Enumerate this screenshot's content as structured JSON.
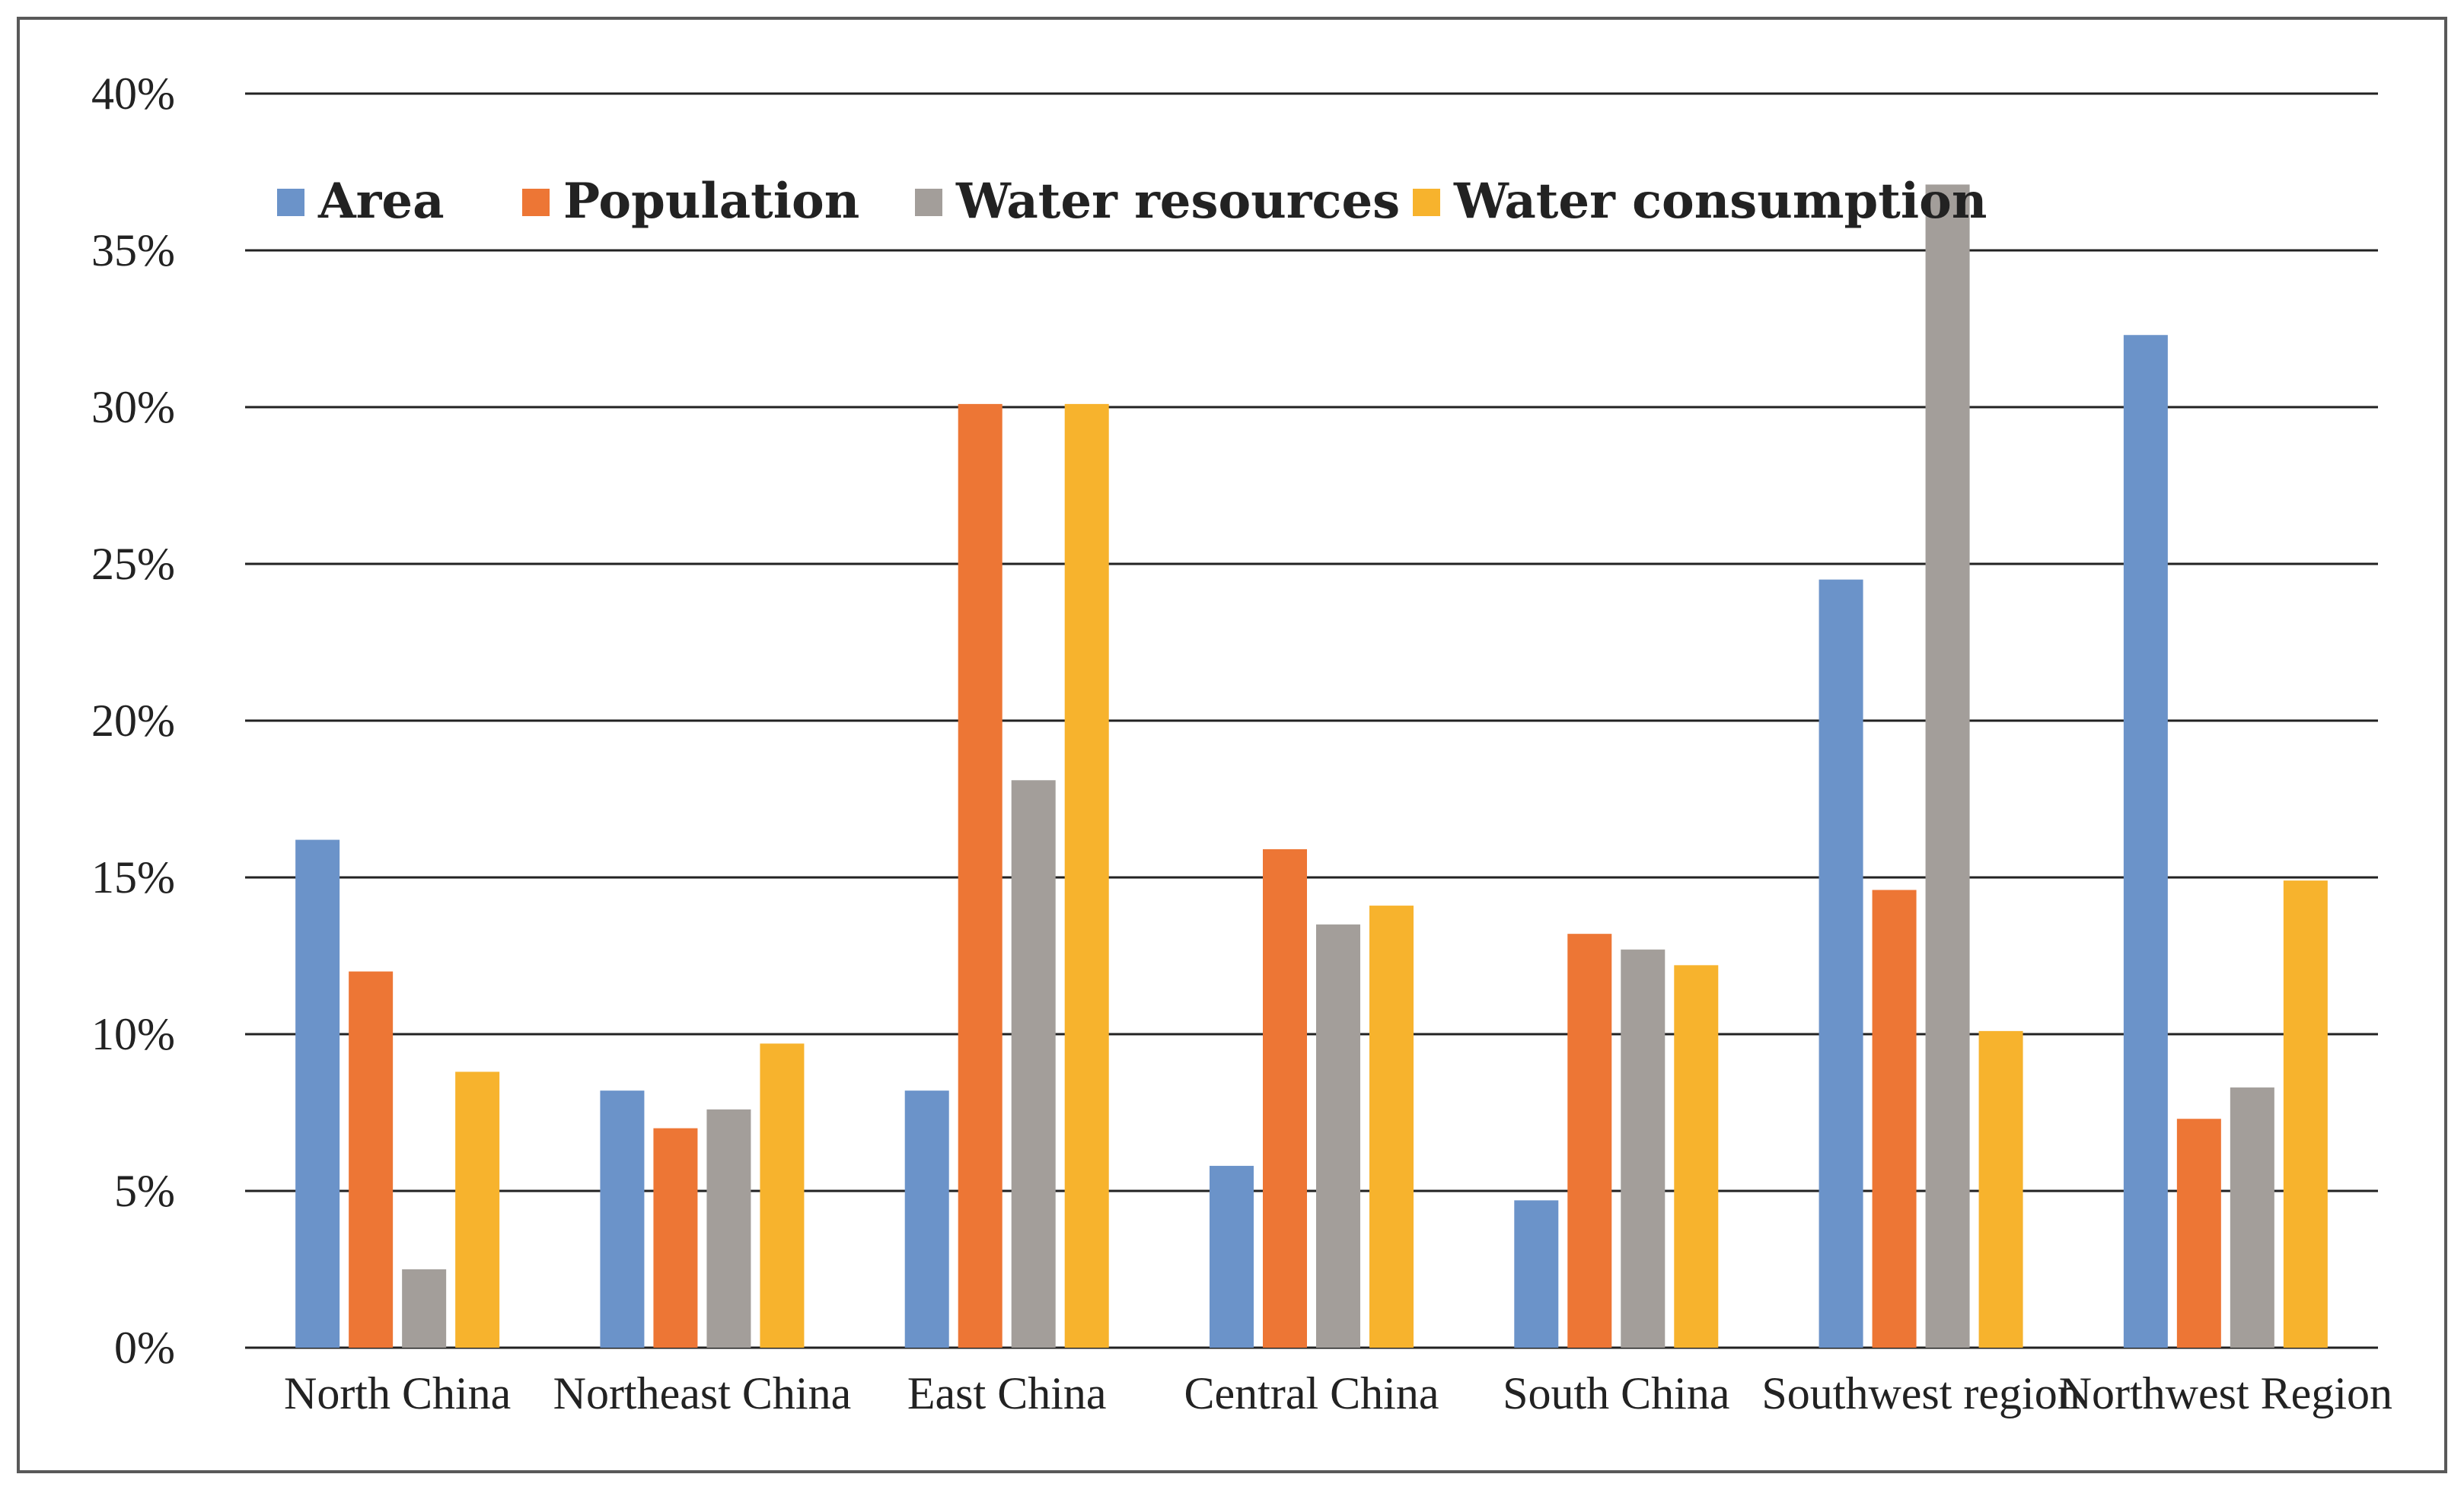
{
  "chart_data": {
    "type": "bar",
    "title": "",
    "xlabel": "",
    "ylabel": "",
    "ylim": [
      0,
      40
    ],
    "y_ticks": [
      0,
      5,
      10,
      15,
      20,
      25,
      30,
      35,
      40
    ],
    "y_tick_labels": [
      "0%",
      "5%",
      "10%",
      "15%",
      "20%",
      "25%",
      "30%",
      "35%",
      "40%"
    ],
    "grid": true,
    "legend_position": "top-left",
    "categories": [
      "North China",
      "Northeast China",
      "East China",
      "Central China",
      "South China",
      "Southwest region",
      "Northwest Region"
    ],
    "series": [
      {
        "name": "Area",
        "color": "#6b93c9",
        "values": [
          16.2,
          8.2,
          8.2,
          5.8,
          4.7,
          24.5,
          32.3
        ]
      },
      {
        "name": "Population",
        "color": "#ed7635",
        "values": [
          12.0,
          7.0,
          30.1,
          15.9,
          13.2,
          14.6,
          7.3
        ]
      },
      {
        "name": "Water resources",
        "color": "#a39e9a",
        "values": [
          2.5,
          7.6,
          18.1,
          13.5,
          12.7,
          37.1,
          8.3
        ]
      },
      {
        "name": "Water consumption",
        "color": "#f7b32d",
        "values": [
          8.8,
          9.7,
          30.1,
          14.1,
          12.2,
          10.1,
          14.9
        ]
      }
    ]
  }
}
